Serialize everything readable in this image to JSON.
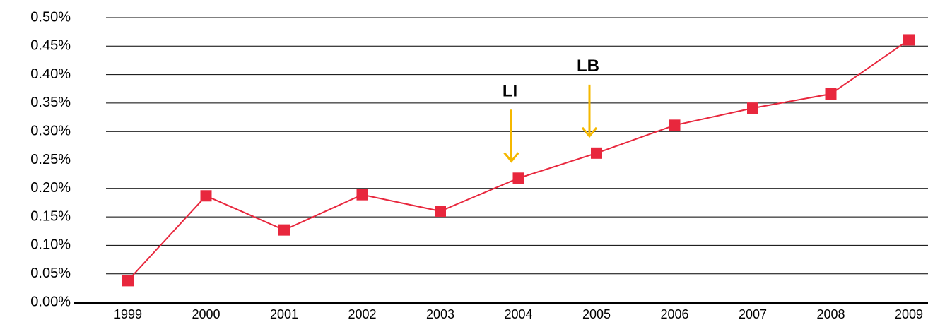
{
  "chart_data": {
    "type": "line",
    "categories": [
      "1999",
      "2000",
      "2001",
      "2002",
      "2003",
      "2004",
      "2005",
      "2006",
      "2007",
      "2008",
      "2009"
    ],
    "series": [
      {
        "color": "#e8273d",
        "values": [
          0.038,
          0.187,
          0.127,
          0.189,
          0.16,
          0.218,
          0.262,
          0.311,
          0.341,
          0.366,
          0.461
        ]
      }
    ],
    "ylim": [
      0,
      0.5
    ],
    "yticks": [
      {
        "value": 0,
        "label": "0.00%"
      },
      {
        "value": 0.05,
        "label": "0.05%"
      },
      {
        "value": 0.1,
        "label": "0.10%"
      },
      {
        "value": 0.15,
        "label": "0.15%"
      },
      {
        "value": 0.2,
        "label": "0.20%"
      },
      {
        "value": 0.25,
        "label": "0.25%"
      },
      {
        "value": 0.3,
        "label": "0.30%"
      },
      {
        "value": 0.35,
        "label": "0.35%"
      },
      {
        "value": 0.4,
        "label": "0.40%"
      },
      {
        "value": 0.45,
        "label": "0.45%"
      },
      {
        "value": 0.5,
        "label": "0.50%"
      }
    ],
    "grid": true,
    "annotations": [
      {
        "text": "LI",
        "category": "2004",
        "color": "#f5b800"
      },
      {
        "text": "LB",
        "category": "2005",
        "color": "#f5b800"
      }
    ]
  }
}
